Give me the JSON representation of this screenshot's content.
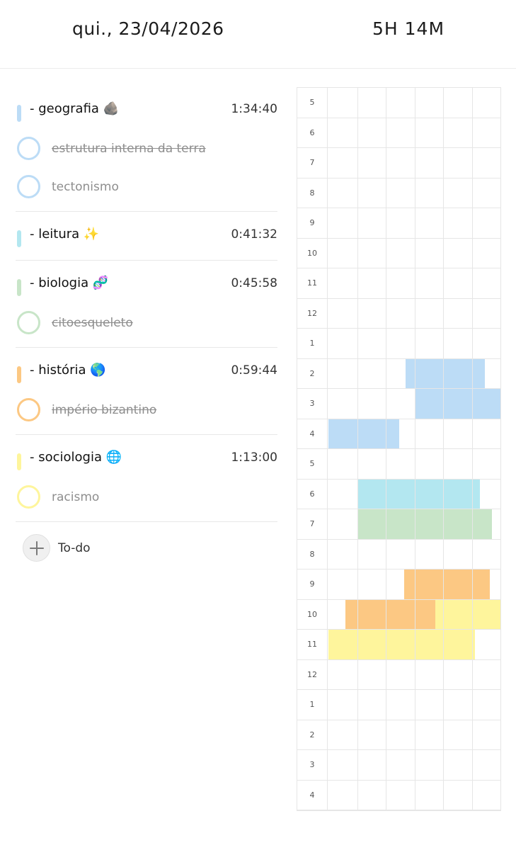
{
  "header": {
    "date": "qui., 23/04/2026",
    "total": "5H 14M"
  },
  "subjects": [
    {
      "name": "- geografia 🪨",
      "time": "1:34:40",
      "color": "#bcdcf6",
      "tasks": [
        {
          "label": "estrutura interna da terra",
          "done": true
        },
        {
          "label": "tectonismo",
          "done": false
        }
      ]
    },
    {
      "name": "- leitura ✨",
      "time": "0:41:32",
      "color": "#b3e7f0",
      "tasks": []
    },
    {
      "name": "- biologia 🧬",
      "time": "0:45:58",
      "color": "#c8e5c8",
      "tasks": [
        {
          "label": "citoesqueleto",
          "done": true
        }
      ]
    },
    {
      "name": "- história 🌎",
      "time": "0:59:44",
      "color": "#fcc883",
      "tasks": [
        {
          "label": "império bizantino",
          "done": true
        }
      ]
    },
    {
      "name": "- sociologia 🌐",
      "time": "1:13:00",
      "color": "#fef59c",
      "tasks": [
        {
          "label": "racismo",
          "done": false
        }
      ]
    }
  ],
  "todo": {
    "label": "To-do"
  },
  "timeline": {
    "hours": [
      "5",
      "6",
      "7",
      "8",
      "9",
      "10",
      "11",
      "12",
      "1",
      "2",
      "3",
      "4",
      "5",
      "6",
      "7",
      "8",
      "9",
      "10",
      "11",
      "12",
      "1",
      "2",
      "3",
      "4"
    ],
    "blocks": [
      {
        "subject": "geografia",
        "row": 9,
        "start": 0.45,
        "end": 0.91,
        "color": "#bcdcf6"
      },
      {
        "subject": "geografia",
        "row": 10,
        "start": 0.5,
        "end": 1.0,
        "color": "#bcdcf6"
      },
      {
        "subject": "geografia",
        "row": 11,
        "start": 0.0,
        "end": 0.41,
        "color": "#bcdcf6"
      },
      {
        "subject": "leitura",
        "row": 13,
        "start": 0.17,
        "end": 0.88,
        "color": "#b3e7f0"
      },
      {
        "subject": "biologia",
        "row": 14,
        "start": 0.17,
        "end": 0.95,
        "color": "#c8e5c8"
      },
      {
        "subject": "história",
        "row": 16,
        "start": 0.44,
        "end": 0.94,
        "color": "#fcc883"
      },
      {
        "subject": "história",
        "row": 17,
        "start": 0.1,
        "end": 0.62,
        "color": "#fcc883"
      },
      {
        "subject": "sociologia",
        "row": 17,
        "start": 0.62,
        "end": 1.0,
        "color": "#fef59c"
      },
      {
        "subject": "sociologia",
        "row": 18,
        "start": 0.0,
        "end": 0.85,
        "color": "#fef59c"
      }
    ]
  }
}
